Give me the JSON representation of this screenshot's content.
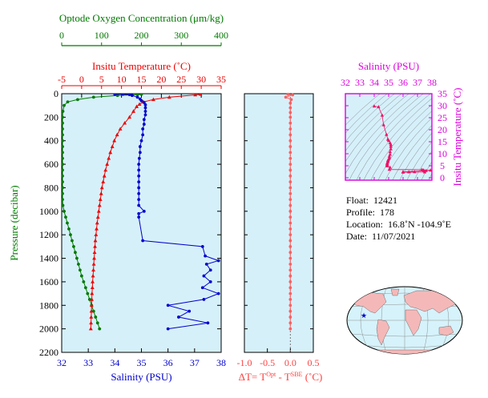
{
  "chart_data": [
    {
      "type": "line",
      "title": "",
      "xlabel": "Salinity (PSU)",
      "xlabel_top_1": "Insitu Temperature (˚C)",
      "xlabel_top_2": "Optode Oxygen Concentration (μm/kg)",
      "ylabel": "Pressure (decibar)",
      "ylim": [
        2200,
        0
      ],
      "yticks": [
        "0",
        "200",
        "400",
        "600",
        "800",
        "1000",
        "1200",
        "1400",
        "1600",
        "1800",
        "2000",
        "2200"
      ],
      "salinity_axis": {
        "range": [
          32,
          38
        ],
        "ticks": [
          "32",
          "33",
          "34",
          "35",
          "36",
          "37",
          "38"
        ],
        "color": "#0000cc"
      },
      "temperature_axis": {
        "range": [
          -5,
          35
        ],
        "ticks": [
          "-5",
          "0",
          "5",
          "10",
          "15",
          "20",
          "25",
          "30",
          "35"
        ],
        "color": "#ee0000"
      },
      "oxygen_axis": {
        "range": [
          0,
          400
        ],
        "ticks": [
          "0",
          "100",
          "200",
          "300",
          "400"
        ],
        "color": "#007a00"
      },
      "grid": false,
      "series": [
        {
          "name": "Salinity",
          "color": "#0000cc",
          "points": [
            [
              34.0,
              5
            ],
            [
              34.3,
              5
            ],
            [
              34.55,
              8
            ],
            [
              34.65,
              15
            ],
            [
              34.85,
              30
            ],
            [
              34.95,
              45
            ],
            [
              35.0,
              60
            ],
            [
              35.1,
              75
            ],
            [
              35.15,
              95
            ],
            [
              35.15,
              120
            ],
            [
              35.15,
              150
            ],
            [
              35.15,
              180
            ],
            [
              35.1,
              220
            ],
            [
              35.1,
              260
            ],
            [
              35.05,
              300
            ],
            [
              35.05,
              350
            ],
            [
              35.0,
              400
            ],
            [
              34.95,
              450
            ],
            [
              34.95,
              500
            ],
            [
              34.92,
              550
            ],
            [
              34.9,
              600
            ],
            [
              34.9,
              650
            ],
            [
              34.9,
              700
            ],
            [
              34.9,
              750
            ],
            [
              34.9,
              800
            ],
            [
              34.9,
              850
            ],
            [
              34.9,
              900
            ],
            [
              34.9,
              950
            ],
            [
              35.1,
              1000
            ],
            [
              34.9,
              1020
            ],
            [
              34.9,
              1050
            ],
            [
              35.05,
              1250
            ],
            [
              37.3,
              1300
            ],
            [
              37.4,
              1380
            ],
            [
              37.9,
              1420
            ],
            [
              37.45,
              1450
            ],
            [
              37.6,
              1500
            ],
            [
              37.35,
              1550
            ],
            [
              37.6,
              1600
            ],
            [
              37.3,
              1650
            ],
            [
              37.9,
              1700
            ],
            [
              37.35,
              1750
            ],
            [
              36.0,
              1800
            ],
            [
              36.8,
              1850
            ],
            [
              36.4,
              1900
            ],
            [
              37.5,
              1950
            ],
            [
              36.0,
              2000
            ]
          ]
        },
        {
          "name": "Insitu Temperature",
          "color": "#ee0000",
          "points": [
            [
              29.8,
              5
            ],
            [
              28.5,
              10
            ],
            [
              22,
              30
            ],
            [
              18,
              50
            ],
            [
              15.5,
              70
            ],
            [
              14.5,
              90
            ],
            [
              13.8,
              110
            ],
            [
              13.0,
              150
            ],
            [
              12.0,
              200
            ],
            [
              10.8,
              250
            ],
            [
              9.7,
              300
            ],
            [
              8.9,
              350
            ],
            [
              8.2,
              400
            ],
            [
              7.7,
              450
            ],
            [
              7.2,
              500
            ],
            [
              6.8,
              550
            ],
            [
              6.4,
              600
            ],
            [
              6.0,
              650
            ],
            [
              5.7,
              700
            ],
            [
              5.4,
              750
            ],
            [
              5.1,
              800
            ],
            [
              4.9,
              850
            ],
            [
              4.7,
              900
            ],
            [
              4.5,
              950
            ],
            [
              4.3,
              1000
            ],
            [
              4.1,
              1050
            ],
            [
              3.9,
              1100
            ],
            [
              3.75,
              1150
            ],
            [
              3.6,
              1200
            ],
            [
              3.45,
              1250
            ],
            [
              3.35,
              1300
            ],
            [
              3.25,
              1350
            ],
            [
              3.15,
              1400
            ],
            [
              3.05,
              1450
            ],
            [
              2.95,
              1500
            ],
            [
              2.85,
              1550
            ],
            [
              2.75,
              1600
            ],
            [
              2.7,
              1650
            ],
            [
              2.6,
              1700
            ],
            [
              2.55,
              1750
            ],
            [
              2.5,
              1800
            ],
            [
              2.45,
              1850
            ],
            [
              2.4,
              1900
            ],
            [
              2.35,
              1950
            ],
            [
              2.3,
              2000
            ]
          ]
        },
        {
          "name": "Oxygen",
          "color": "#007a00",
          "points": [
            [
              200,
              5
            ],
            [
              190,
              8
            ],
            [
              140,
              15
            ],
            [
              80,
              30
            ],
            [
              40,
              50
            ],
            [
              15,
              70
            ],
            [
              6,
              100
            ],
            [
              3,
              150
            ],
            [
              2,
              200
            ],
            [
              2,
              250
            ],
            [
              2,
              300
            ],
            [
              2,
              350
            ],
            [
              2,
              400
            ],
            [
              2,
              450
            ],
            [
              2,
              500
            ],
            [
              2,
              550
            ],
            [
              2,
              600
            ],
            [
              2,
              650
            ],
            [
              2,
              700
            ],
            [
              2,
              750
            ],
            [
              2,
              800
            ],
            [
              2,
              850
            ],
            [
              2,
              900
            ],
            [
              3,
              950
            ],
            [
              6,
              1000
            ],
            [
              10,
              1050
            ],
            [
              14,
              1100
            ],
            [
              18,
              1150
            ],
            [
              22,
              1200
            ],
            [
              26,
              1250
            ],
            [
              30,
              1300
            ],
            [
              34,
              1350
            ],
            [
              38,
              1400
            ],
            [
              42,
              1450
            ],
            [
              46,
              1500
            ],
            [
              50,
              1550
            ],
            [
              55,
              1600
            ],
            [
              60,
              1650
            ],
            [
              65,
              1700
            ],
            [
              70,
              1750
            ],
            [
              75,
              1800
            ],
            [
              80,
              1850
            ],
            [
              85,
              1900
            ],
            [
              90,
              1950
            ],
            [
              95,
              2000
            ]
          ]
        }
      ]
    },
    {
      "type": "line",
      "title": "",
      "xlabel": "ΔT= T",
      "xlabel_sup1": "Opt",
      "xlabel_mid": " - T",
      "xlabel_sup2": "SBE",
      "xlabel_end": " (˚C)",
      "xlim": [
        -1.0,
        0.5
      ],
      "xticks": [
        "-1.0",
        "-0.5",
        "0.0",
        "0.5"
      ],
      "ylim": [
        2200,
        0
      ],
      "series": [
        {
          "name": "",
          "color": "#ff6060",
          "points": [
            [
              -0.05,
              5
            ],
            [
              0.05,
              10
            ],
            [
              -0.1,
              30
            ],
            [
              0.02,
              50
            ],
            [
              0.0,
              80
            ],
            [
              0.0,
              120
            ],
            [
              0.0,
              160
            ],
            [
              0.0,
              200
            ],
            [
              0.0,
              250
            ],
            [
              0.0,
              300
            ],
            [
              0.0,
              350
            ],
            [
              0.0,
              400
            ],
            [
              0.0,
              450
            ],
            [
              0.0,
              500
            ],
            [
              0.0,
              550
            ],
            [
              0.0,
              600
            ],
            [
              0.0,
              650
            ],
            [
              0.0,
              700
            ],
            [
              0.0,
              750
            ],
            [
              0.0,
              800
            ],
            [
              0.0,
              850
            ],
            [
              0.0,
              900
            ],
            [
              0.0,
              950
            ],
            [
              0.0,
              1000
            ],
            [
              0.0,
              1050
            ],
            [
              0.0,
              1100
            ],
            [
              0.0,
              1150
            ],
            [
              0.0,
              1200
            ],
            [
              0.0,
              1250
            ],
            [
              0.0,
              1300
            ],
            [
              0.0,
              1350
            ],
            [
              0.0,
              1400
            ],
            [
              0.0,
              1450
            ],
            [
              0.0,
              1500
            ],
            [
              0.0,
              1550
            ],
            [
              0.0,
              1600
            ],
            [
              0.0,
              1650
            ],
            [
              0.0,
              1700
            ],
            [
              0.0,
              1750
            ],
            [
              0.0,
              1800
            ],
            [
              0.0,
              1850
            ],
            [
              0.0,
              1900
            ],
            [
              0.0,
              1950
            ],
            [
              0.0,
              2000
            ]
          ]
        }
      ]
    },
    {
      "type": "scatter",
      "title": "Salinity (PSU)",
      "xlabel": "",
      "ylabel": "Insitu Temperature (˚C)",
      "xlim": [
        32,
        38
      ],
      "ylim": [
        -1,
        35
      ],
      "xticks": [
        "32",
        "33",
        "34",
        "35",
        "36",
        "37",
        "38"
      ],
      "yticks": [
        "0",
        "5",
        "10",
        "15",
        "20",
        "25",
        "30",
        "35"
      ],
      "color": "#dd00dd",
      "series": [
        {
          "name": "",
          "color": "#ee1166",
          "points": [
            [
              34.0,
              29.8
            ],
            [
              34.3,
              29.5
            ],
            [
              34.55,
              26
            ],
            [
              34.65,
              22
            ],
            [
              34.85,
              18
            ],
            [
              34.95,
              16
            ],
            [
              35.0,
              15.5
            ],
            [
              35.1,
              14.5
            ],
            [
              35.15,
              13.8
            ],
            [
              35.15,
              13
            ],
            [
              35.15,
              12
            ],
            [
              35.1,
              10.8
            ],
            [
              35.1,
              9.7
            ],
            [
              35.05,
              8.9
            ],
            [
              35.05,
              8.2
            ],
            [
              35.0,
              7.7
            ],
            [
              34.95,
              7.2
            ],
            [
              34.95,
              6.8
            ],
            [
              34.92,
              6.4
            ],
            [
              34.9,
              6.0
            ],
            [
              34.9,
              5.7
            ],
            [
              34.9,
              5.4
            ],
            [
              34.9,
              5.1
            ],
            [
              34.9,
              4.9
            ],
            [
              35.1,
              4.3
            ],
            [
              35.05,
              3.45
            ],
            [
              37.3,
              3.35
            ],
            [
              37.4,
              3.2
            ],
            [
              37.9,
              3.1
            ],
            [
              37.45,
              3.0
            ],
            [
              37.6,
              2.95
            ],
            [
              36.0,
              2.5
            ],
            [
              36.8,
              2.45
            ],
            [
              36.4,
              2.4
            ],
            [
              37.5,
              2.35
            ],
            [
              36.0,
              2.3
            ]
          ]
        }
      ]
    }
  ],
  "info": {
    "float_label": "Float:",
    "float_value": "12421",
    "profile_label": "Profile:",
    "profile_value": "178",
    "location_label": "Location:",
    "location_value": "16.8˚N  -104.9˚E",
    "date_label": "Date:",
    "date_value": "11/07/2021"
  },
  "map": {
    "marker_color": "#0000cc"
  }
}
